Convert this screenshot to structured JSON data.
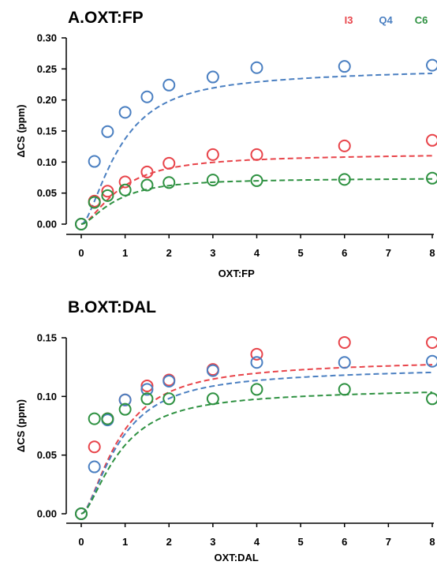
{
  "chart_data": [
    {
      "type": "scatter",
      "title": "A.OXT:FP",
      "xlabel": "OXT:FP",
      "ylabel": "ΔCS (ppm)",
      "xlim": [
        0,
        8
      ],
      "ylim": [
        0,
        0.3
      ],
      "xticks": [
        "0",
        "1",
        "2",
        "3",
        "4",
        "5",
        "6",
        "7",
        "8"
      ],
      "yticks": [
        "0.00",
        "0.05",
        "0.10",
        "0.15",
        "0.20",
        "0.25",
        "0.30"
      ],
      "legend_position": "top-right",
      "grid": false,
      "series": [
        {
          "name": "I3",
          "color": "#e8444a",
          "x": [
            0,
            0.3,
            0.6,
            1.0,
            1.5,
            2.0,
            3.0,
            4.0,
            6.0,
            8.0
          ],
          "y": [
            0.0,
            0.037,
            0.053,
            0.068,
            0.084,
            0.098,
            0.112,
            0.112,
            0.126,
            0.135
          ],
          "fit": {
            "max": 0.117,
            "kd": 0.5
          }
        },
        {
          "name": "Q4",
          "color": "#4a7fc1",
          "x": [
            0,
            0.3,
            0.6,
            1.0,
            1.5,
            2.0,
            3.0,
            4.0,
            6.0,
            8.0
          ],
          "y": [
            0.0,
            0.101,
            0.149,
            0.18,
            0.205,
            0.224,
            0.237,
            0.252,
            0.254,
            0.256
          ],
          "fit": {
            "max": 0.258,
            "kd": 0.5
          }
        },
        {
          "name": "C6",
          "color": "#2e9141",
          "x": [
            0,
            0.3,
            0.6,
            1.0,
            1.5,
            2.0,
            3.0,
            4.0,
            6.0,
            8.0
          ],
          "y": [
            0.0,
            0.035,
            0.046,
            0.055,
            0.063,
            0.067,
            0.071,
            0.07,
            0.072,
            0.074
          ],
          "fit": {
            "max": 0.076,
            "kd": 0.35
          }
        }
      ]
    },
    {
      "type": "scatter",
      "title": "B.OXT:DAL",
      "xlabel": "OXT:DAL",
      "ylabel": "ΔCS (ppm)",
      "xlim": [
        0,
        8
      ],
      "ylim": [
        0,
        0.15
      ],
      "xticks": [
        "0",
        "1",
        "2",
        "3",
        "4",
        "5",
        "6",
        "7",
        "8"
      ],
      "yticks": [
        "0.00",
        "0.05",
        "0.10",
        "0.15"
      ],
      "grid": false,
      "series": [
        {
          "name": "I3",
          "color": "#e8444a",
          "x": [
            0,
            0.3,
            0.6,
            1.0,
            1.5,
            2.0,
            3.0,
            4.0,
            6.0,
            8.0
          ],
          "y": [
            0.0,
            0.057,
            0.081,
            0.097,
            0.109,
            0.114,
            0.123,
            0.136,
            0.146,
            0.146
          ],
          "fit": {
            "max": 0.135,
            "kd": 0.5
          }
        },
        {
          "name": "Q4",
          "color": "#4a7fc1",
          "x": [
            0,
            0.3,
            0.6,
            1.0,
            1.5,
            2.0,
            3.0,
            4.0,
            6.0,
            8.0
          ],
          "y": [
            0.0,
            0.04,
            0.08,
            0.097,
            0.106,
            0.113,
            0.122,
            0.129,
            0.129,
            0.13
          ],
          "fit": {
            "max": 0.128,
            "kd": 0.5
          }
        },
        {
          "name": "C6",
          "color": "#2e9141",
          "x": [
            0,
            0.3,
            0.6,
            1.0,
            1.5,
            2.0,
            3.0,
            4.0,
            6.0,
            8.0
          ],
          "y": [
            0.0,
            0.081,
            0.081,
            0.089,
            0.098,
            0.098,
            0.098,
            0.106,
            0.106,
            0.098
          ],
          "fit": {
            "max": 0.11,
            "kd": 0.5
          }
        }
      ]
    }
  ]
}
